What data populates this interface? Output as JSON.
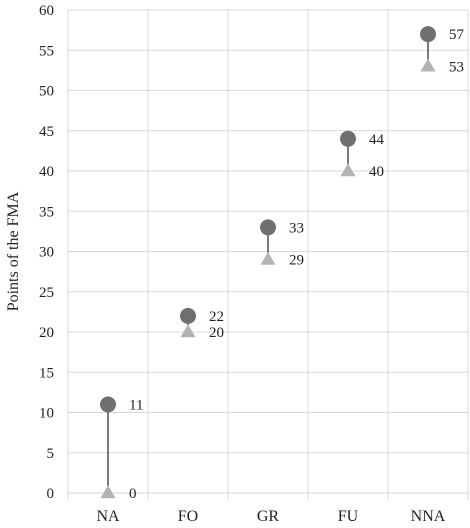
{
  "chart_data": {
    "type": "dot-range",
    "categories": [
      "NA",
      "FO",
      "GR",
      "FU",
      "NNA"
    ],
    "series": [
      {
        "marker": "circle",
        "color": "#6f6f6f",
        "values": [
          11,
          22,
          33,
          44,
          57
        ]
      },
      {
        "marker": "triangle",
        "color": "#b3b3b3",
        "values": [
          0,
          20,
          29,
          40,
          53
        ]
      }
    ],
    "ylabel": "Points of the FMA",
    "xlabel": "",
    "ylim": [
      0,
      60
    ],
    "yticks": [
      0,
      5,
      10,
      15,
      20,
      25,
      30,
      35,
      40,
      45,
      50,
      55,
      60
    ],
    "grid": true,
    "connector_color": "#333333",
    "grid_color": "#d9d9d9"
  }
}
